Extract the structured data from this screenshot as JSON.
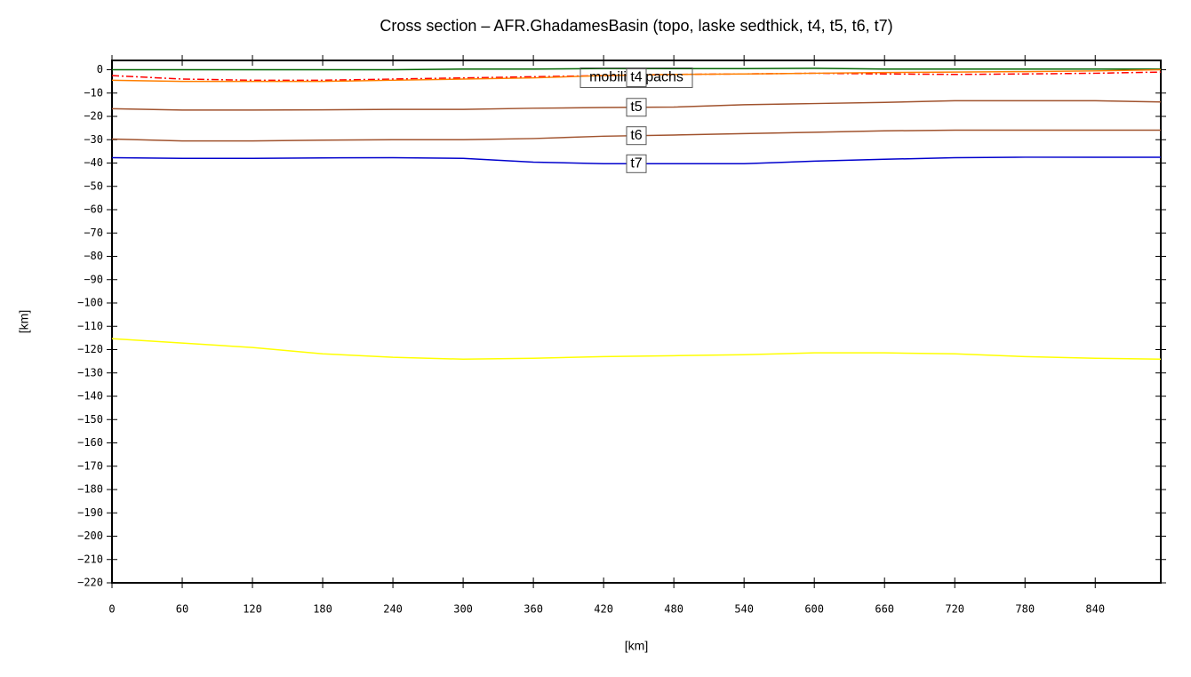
{
  "chart_data": {
    "type": "line",
    "title": "Cross section – AFR.GhadamesBasin (topo, laske sedthick, t4, t5, t6, t7)",
    "x_label": "[km]",
    "y_label": "[km]",
    "x": [
      0,
      60,
      120,
      180,
      240,
      300,
      360,
      420,
      480,
      540,
      600,
      660,
      720,
      780,
      840,
      896
    ],
    "xlim": [
      0,
      896
    ],
    "ylim": [
      -220,
      4
    ],
    "xticks": [
      0,
      60,
      120,
      180,
      240,
      300,
      360,
      420,
      480,
      540,
      600,
      660,
      720,
      780,
      840
    ],
    "yticks": [
      0,
      {
        "value": -10,
        "label": "−10"
      },
      {
        "value": -20,
        "label": "−20"
      },
      {
        "value": -30,
        "label": "−30"
      },
      {
        "value": -40,
        "label": "−40"
      },
      {
        "value": -50,
        "label": "−50"
      },
      {
        "value": -60,
        "label": "−60"
      },
      {
        "value": -70,
        "label": "−70"
      },
      {
        "value": -80,
        "label": "−80"
      },
      {
        "value": -90,
        "label": "−90"
      },
      {
        "value": -100,
        "label": "−100"
      },
      {
        "value": -110,
        "label": "−110"
      },
      {
        "value": -120,
        "label": "−120"
      },
      {
        "value": -130,
        "label": "−130"
      },
      {
        "value": -140,
        "label": "−140"
      },
      {
        "value": -150,
        "label": "−150"
      },
      {
        "value": -160,
        "label": "−160"
      },
      {
        "value": -170,
        "label": "−170"
      },
      {
        "value": -180,
        "label": "−180"
      },
      {
        "value": -190,
        "label": "−190"
      },
      {
        "value": -200,
        "label": "−200"
      },
      {
        "value": -210,
        "label": "−210"
      },
      {
        "value": -220,
        "label": "−220"
      }
    ],
    "annotation": "mobilistopachs",
    "series": [
      {
        "color": "#006400",
        "values": [
          0,
          0,
          0,
          0,
          0,
          0.3,
          0.3,
          0.5,
          0.5,
          0.5,
          0.6,
          0.3,
          0.3,
          0.3,
          0.3,
          0.3
        ]
      },
      {
        "color": "#ff0000",
        "dash": "8,3,2,3",
        "values": [
          -2.5,
          -4,
          -4.5,
          -4.5,
          -4,
          -3.5,
          -3,
          -2.5,
          -2,
          -1.8,
          -1.5,
          -1.8,
          -2,
          -1.8,
          -1.5,
          -1
        ]
      },
      {
        "name": "t4",
        "color": "#ff7f00",
        "values": [
          -4.5,
          -5,
          -5,
          -5,
          -4.5,
          -4,
          -3.5,
          -2.5,
          -2,
          -1.8,
          -1.5,
          -1.2,
          -1,
          -0.8,
          -0.5,
          0
        ]
      },
      {
        "name": "t5",
        "color": "#a0522d",
        "values": [
          -16.7,
          -17.3,
          -17.3,
          -17.2,
          -17,
          -17,
          -16.5,
          -16.2,
          -16,
          -15,
          -14.5,
          -14,
          -13.3,
          -13.3,
          -13.3,
          -13.8
        ]
      },
      {
        "name": "t6",
        "color": "#a0522d",
        "values": [
          -29.7,
          -30.5,
          -30.5,
          -30.2,
          -30,
          -30,
          -29.5,
          -28.5,
          -28,
          -27.4,
          -26.8,
          -26.2,
          -25.9,
          -25.9,
          -25.9,
          -25.9
        ]
      },
      {
        "name": "t7",
        "color": "#0000cd",
        "values": [
          -37.7,
          -38,
          -38,
          -37.8,
          -37.7,
          -38,
          -39.6,
          -40.3,
          -40.3,
          -40.3,
          -39.2,
          -38.4,
          -37.7,
          -37.5,
          -37.5,
          -37.5
        ]
      },
      {
        "color": "#ffff00",
        "values": [
          -115.3,
          -117.2,
          -119.1,
          -121.8,
          -123.3,
          -124.1,
          -123.7,
          -123,
          -122.6,
          -122.2,
          -121.4,
          -121.4,
          -121.8,
          -123,
          -123.7,
          -124.1
        ]
      }
    ]
  }
}
